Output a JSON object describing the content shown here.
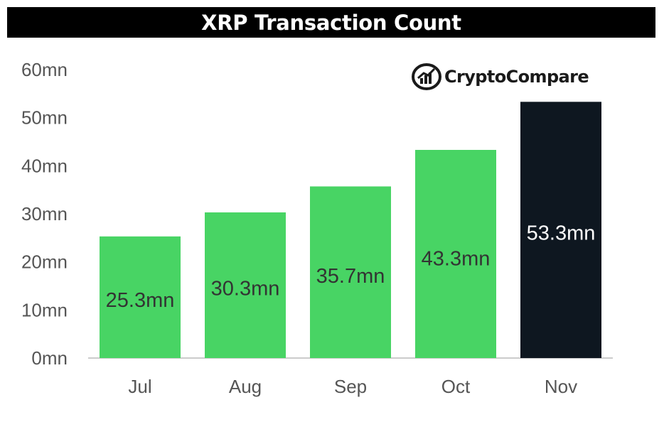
{
  "title": "XRP Transaction Count",
  "logo": {
    "text": "CryptoCompare",
    "icon": "cryptocompare-logo-icon"
  },
  "colors": {
    "bar": "#48d464",
    "highlight_bar": "#0e1720",
    "axis": "#cccccc",
    "label_dark": "#333333",
    "label_light": "#ffffff"
  },
  "chart_data": {
    "type": "bar",
    "title": "XRP Transaction Count",
    "categories": [
      "Jul",
      "Aug",
      "Sep",
      "Oct",
      "Nov"
    ],
    "values": [
      25.3,
      30.3,
      35.7,
      43.3,
      53.3
    ],
    "unit": "mn",
    "data_labels": [
      "25.3mn",
      "30.3mn",
      "35.7mn",
      "43.3mn",
      "53.3mn"
    ],
    "highlight_index": 4,
    "y_ticks": [
      "0mn",
      "10mn",
      "20mn",
      "30mn",
      "40mn",
      "50mn",
      "60mn"
    ],
    "ylim": [
      0,
      60
    ],
    "xlabel": "",
    "ylabel": "",
    "grid": false,
    "legend": "none"
  }
}
